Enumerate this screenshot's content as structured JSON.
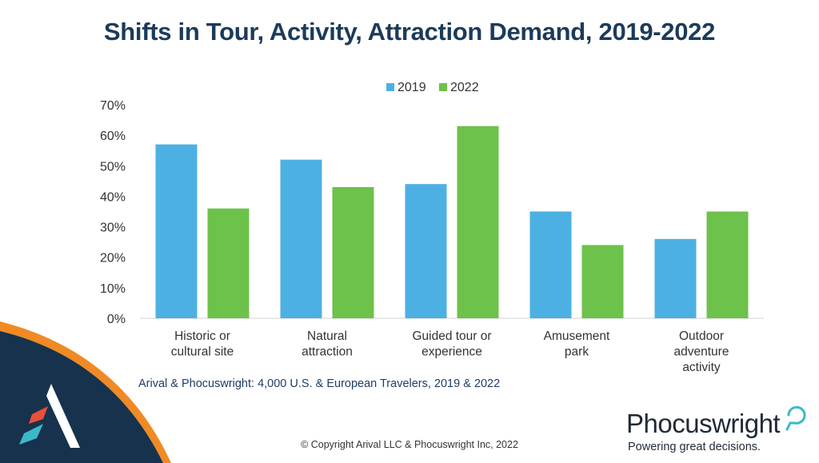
{
  "title": "Shifts in Tour, Activity, Attraction Demand, 2019-2022",
  "source_note": "Arival & Phocuswright: 4,000 U.S. & European Travelers, 2019 & 2022",
  "copyright": "© Copyright Arival LLC & Phocuswright Inc,  2022",
  "brand": {
    "name": "Phocuswright",
    "tagline": "Powering great decisions."
  },
  "colors": {
    "series_2019": "#4db0e3",
    "series_2022": "#6cc24a",
    "title": "#1c3b5a",
    "corner_navy": "#17324d",
    "corner_orange": "#f08a24",
    "logo_red": "#e8503a",
    "logo_teal": "#3cb9c9"
  },
  "chart_data": {
    "type": "bar",
    "categories": [
      [
        "Historic or",
        "cultural site"
      ],
      [
        "Natural",
        "attraction"
      ],
      [
        "Guided tour or",
        "experience"
      ],
      [
        "Amusement",
        "park"
      ],
      [
        "Outdoor",
        "adventure",
        "activity"
      ]
    ],
    "series": [
      {
        "name": "2019",
        "values": [
          57,
          52,
          44,
          35,
          26
        ]
      },
      {
        "name": "2022",
        "values": [
          36,
          43,
          63,
          24,
          35
        ]
      }
    ],
    "ylim": [
      0,
      70
    ],
    "yticks": [
      "0%",
      "10%",
      "20%",
      "30%",
      "40%",
      "50%",
      "60%",
      "70%"
    ],
    "y_tick_values": [
      0,
      10,
      20,
      30,
      40,
      50,
      60,
      70
    ],
    "grid": false,
    "legend_position": "top"
  }
}
